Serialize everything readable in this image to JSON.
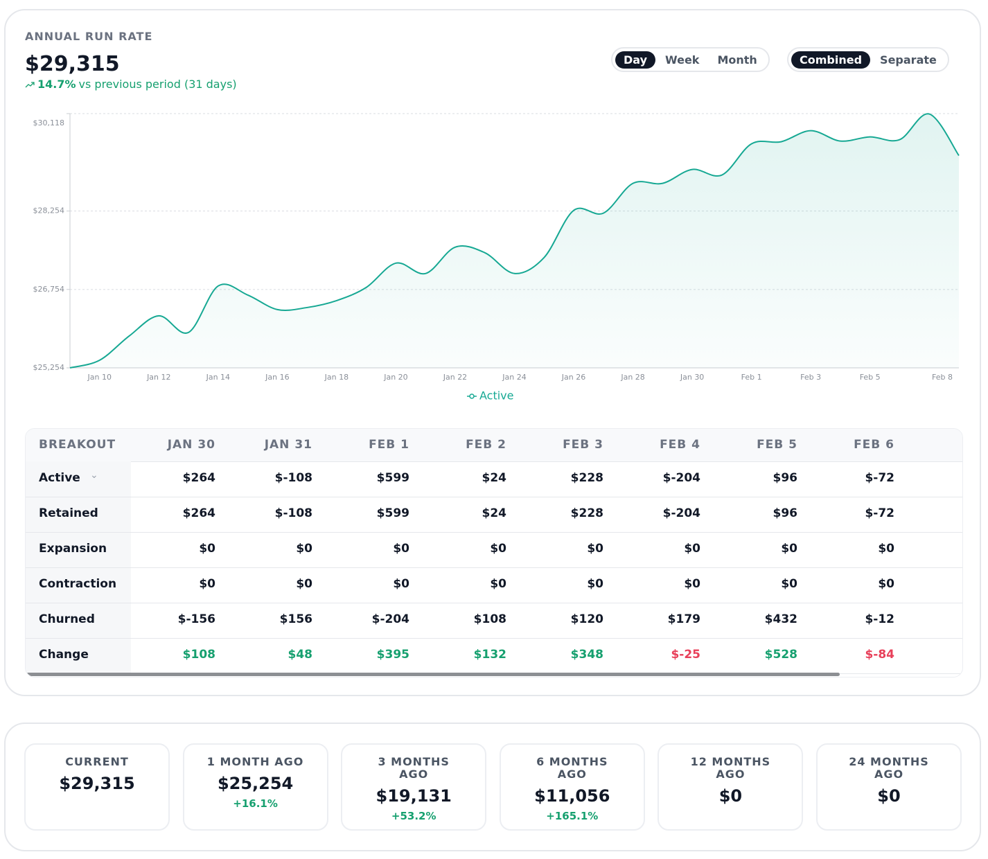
{
  "header": {
    "title": "ANNUAL RUN RATE",
    "value": "$29,315",
    "change": "14.7%",
    "change_note": "vs previous period (31 days)"
  },
  "period_toggle": {
    "options": [
      "Day",
      "Week",
      "Month"
    ],
    "selected": "Day"
  },
  "view_toggle": {
    "options": [
      "Combined",
      "Separate"
    ],
    "selected": "Combined"
  },
  "chart_data": {
    "type": "area",
    "categories": [
      null,
      "Jan 10",
      null,
      "Jan 12",
      null,
      "Jan 14",
      null,
      "Jan 16",
      null,
      "Jan 18",
      null,
      "Jan 20",
      null,
      "Jan 22",
      null,
      "Jan 24",
      null,
      "Jan 26",
      null,
      "Jan 28",
      null,
      "Jan 30",
      null,
      "Feb 1",
      null,
      "Feb 3",
      null,
      "Feb 5",
      null,
      null,
      "Feb 8"
    ],
    "series": [
      {
        "name": "Active",
        "color": "#16a893",
        "values": [
          25254,
          25400,
          25864,
          26250,
          25931,
          26820,
          26647,
          26369,
          26408,
          26541,
          26793,
          27258,
          27059,
          27563,
          27457,
          27059,
          27364,
          28266,
          28213,
          28784,
          28784,
          29050,
          28943,
          29540,
          29580,
          29792,
          29593,
          29673,
          29620,
          30111,
          29315
        ]
      }
    ],
    "ylim": [
      25254,
      30118
    ],
    "yticks": [
      {
        "value": 25254,
        "label": "$25,254"
      },
      {
        "value": 26754,
        "label": "$26,754"
      },
      {
        "value": 28254,
        "label": "$28,254"
      },
      {
        "value": 30118,
        "label": "$30,118"
      }
    ],
    "grid": true
  },
  "table": {
    "header": [
      "BREAKOUT",
      "JAN 30",
      "JAN 31",
      "FEB 1",
      "FEB 2",
      "FEB 3",
      "FEB 4",
      "FEB 5",
      "FEB 6"
    ],
    "rows": [
      [
        "Active",
        "$264",
        "$-108",
        "$599",
        "$24",
        "$228",
        "$-204",
        "$96",
        "$-72"
      ],
      [
        "Retained",
        "$264",
        "$-108",
        "$599",
        "$24",
        "$228",
        "$-204",
        "$96",
        "$-72"
      ],
      [
        "Expansion",
        "$0",
        "$0",
        "$0",
        "$0",
        "$0",
        "$0",
        "$0",
        "$0"
      ],
      [
        "Contraction",
        "$0",
        "$0",
        "$0",
        "$0",
        "$0",
        "$0",
        "$0",
        "$0"
      ],
      [
        "Churned",
        "$-156",
        "$156",
        "$-204",
        "$108",
        "$120",
        "$179",
        "$432",
        "$-12"
      ],
      [
        "Change",
        "$108",
        "$48",
        "$395",
        "$132",
        "$348",
        "$-25",
        "$528",
        "$-84"
      ]
    ]
  },
  "summary": [
    {
      "label": "CURRENT",
      "value": "$29,315"
    },
    {
      "label": "1 MONTH AGO",
      "value": "$25,254",
      "change": "+16.1%"
    },
    {
      "label": "3 MONTHS AGO",
      "value": "$19,131",
      "change": "+53.2%"
    },
    {
      "label": "6 MONTHS AGO",
      "value": "$11,056",
      "change": "+165.1%"
    },
    {
      "label": "12 MONTHS AGO",
      "value": "$0"
    },
    {
      "label": "24 MONTHS AGO",
      "value": "$0"
    }
  ]
}
